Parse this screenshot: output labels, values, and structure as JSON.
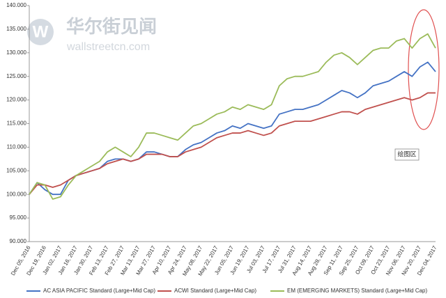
{
  "chart_data": {
    "type": "line",
    "watermark": {
      "title": "华尔街见闻",
      "url": "wallstreetcn.com"
    },
    "annotation": "绘图区",
    "categories": [
      "Dec 05, 2016",
      null,
      "Dec 19, 2016",
      null,
      "Jan 02, 2017",
      null,
      "Jan 16, 2017",
      null,
      "Jan 30, 2017",
      null,
      "Feb 13, 2017",
      null,
      "Feb 27, 2017",
      null,
      "Mar 13, 2017",
      null,
      "Mar 27, 2017",
      null,
      "Apr 10, 2017",
      null,
      "Apr 24, 2017",
      null,
      "May 08, 2017",
      null,
      "May 22, 2017",
      null,
      "Jun 05, 2017",
      null,
      "Jun 19, 2017",
      null,
      "Jul 03, 2017",
      null,
      "Jul 17, 2017",
      null,
      "Jul 31, 2017",
      null,
      "Aug 14, 2017",
      null,
      "Aug 28, 2017",
      null,
      "Sep 11, 2017",
      null,
      "Sep 25, 2017",
      null,
      "Oct 09, 2017",
      null,
      "Oct 23, 2017",
      null,
      "Nov 06, 2017",
      null,
      "Nov 20, 2017",
      null,
      "Dec 04, 2017"
    ],
    "series": [
      {
        "name": "AC ASIA PACIFIC Standard (Large+Mid Cap)",
        "color": "#4472c4",
        "values": [
          100,
          102.5,
          101,
          100,
          100,
          103,
          104,
          104.5,
          105,
          105.5,
          107,
          107.5,
          107.5,
          107,
          107.5,
          109,
          109,
          108.5,
          108,
          108,
          109.5,
          110.5,
          111,
          112,
          113,
          113.5,
          114.5,
          114,
          115,
          114.5,
          114,
          114.5,
          117,
          117.5,
          118,
          118,
          118.5,
          119,
          120,
          121,
          122,
          121.5,
          120.5,
          121.5,
          123,
          123.5,
          124,
          125,
          126,
          125,
          127,
          128,
          126
        ]
      },
      {
        "name": "ACWI Standard (Large+Mid Cap)",
        "color": "#c0504d",
        "values": [
          100,
          102,
          102,
          101.5,
          102,
          103,
          104,
          104.5,
          105,
          105.5,
          106.5,
          107,
          107.5,
          107,
          107.5,
          108.5,
          108.5,
          108.5,
          108,
          108,
          109,
          109.5,
          110,
          111,
          112,
          112.5,
          113,
          113,
          113.5,
          113,
          112.5,
          113,
          114.5,
          115,
          115.5,
          115.5,
          115.5,
          116,
          116.5,
          117,
          117.5,
          117.5,
          117,
          118,
          118.5,
          119,
          119.5,
          120,
          120.5,
          120,
          120.5,
          121.5,
          121.5
        ]
      },
      {
        "name": "EM (EMERGING MARKETS) Standard (Large+Mid Cap)",
        "color": "#9bbb59",
        "values": [
          100,
          102.5,
          102,
          99,
          99.5,
          102,
          104,
          105,
          106,
          107,
          109,
          110,
          109,
          108,
          110,
          113,
          113,
          112.5,
          112,
          111.5,
          113,
          114.5,
          115,
          116,
          117,
          117.5,
          118.5,
          118,
          119,
          118.5,
          118,
          119,
          123,
          124.5,
          125,
          125,
          125.5,
          126,
          128,
          129.5,
          130,
          129,
          127.5,
          129,
          130.5,
          131,
          131,
          132.5,
          133,
          131,
          133,
          134,
          131
        ]
      }
    ],
    "ylim": [
      90,
      140
    ],
    "yticks": [
      {
        "value": 90,
        "label": "90.000"
      },
      {
        "value": 95,
        "label": "95.000"
      },
      {
        "value": 100,
        "label": "100.000"
      },
      {
        "value": 105,
        "label": "105.000"
      },
      {
        "value": 110,
        "label": "110.000"
      },
      {
        "value": 115,
        "label": "115.000"
      },
      {
        "value": 120,
        "label": "120.000"
      },
      {
        "value": 125,
        "label": "125.000"
      },
      {
        "value": 130,
        "label": "130.000"
      },
      {
        "value": 135,
        "label": "135.000"
      },
      {
        "value": 140,
        "label": "140.000"
      }
    ],
    "grid": false
  }
}
